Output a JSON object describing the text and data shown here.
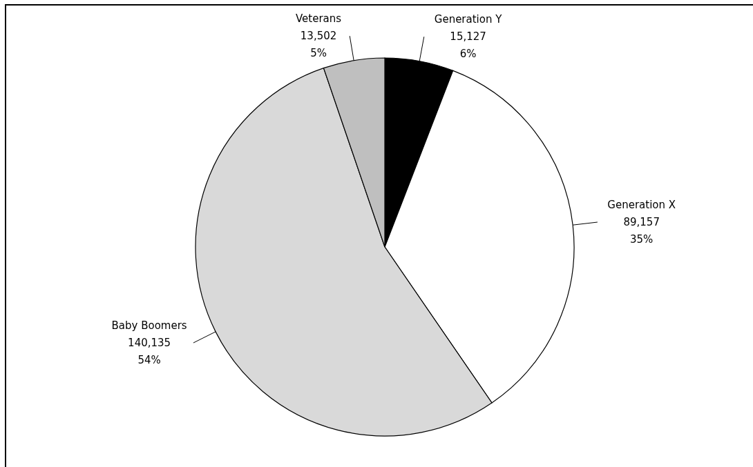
{
  "chart_data": {
    "type": "pie",
    "categories": [
      "Generation Y",
      "Generation X",
      "Baby Boomers",
      "Veterans"
    ],
    "values": [
      15127,
      89157,
      140135,
      13502
    ],
    "colors": [
      "#000000",
      "#ffffff",
      "#d9d9d9",
      "#bfbfbf"
    ],
    "value_labels": [
      "15,127\n6%",
      "89,157\n35%",
      "140,135\n54%",
      "13,502\n5%"
    ]
  }
}
